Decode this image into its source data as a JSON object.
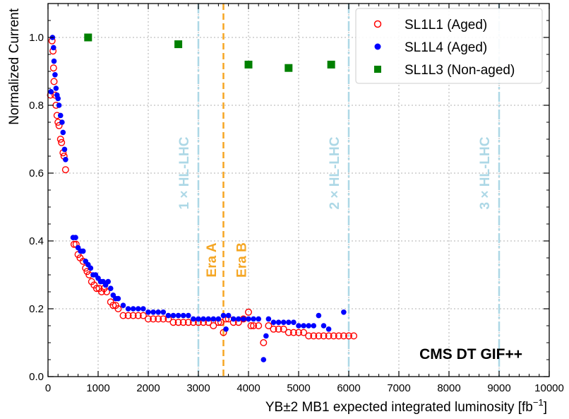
{
  "chart_data": {
    "type": "scatter",
    "xlabel": "YB±2 MB1 expected integrated luminosity [fb",
    "xlabel_unit_exp": "−1",
    "xlabel_close": "]",
    "ylabel": "Normalized Current",
    "xlim": [
      0,
      10000
    ],
    "ylim": [
      0,
      1.1
    ],
    "grid": true,
    "legend_position": "top-right",
    "x_ticks": [
      0,
      1000,
      2000,
      3000,
      4000,
      5000,
      6000,
      7000,
      8000,
      9000,
      10000
    ],
    "x_tick_labels": [
      "0",
      "1000",
      "2000",
      "3000",
      "4000",
      "5000",
      "6000",
      "7000",
      "8000",
      "9000",
      "10000"
    ],
    "y_ticks": [
      0,
      0.2,
      0.4,
      0.6,
      0.8,
      1.0
    ],
    "y_tick_labels": [
      "0.0",
      "0.2",
      "0.4",
      "0.6",
      "0.8",
      "1.0"
    ],
    "annotation": "CMS DT GIF++",
    "vertical_lines": [
      {
        "x": 3000,
        "label": "1 × HL-LHC",
        "color": "#add8e6",
        "style": "dashdot"
      },
      {
        "x": 6000,
        "label": "2 × HL-LHC",
        "color": "#add8e6",
        "style": "dashdot"
      },
      {
        "x": 9000,
        "label": "3 × HL-LHC",
        "color": "#add8e6",
        "style": "dashdot"
      },
      {
        "x": 3500,
        "label": "",
        "color": "#f5a623",
        "style": "dashed"
      }
    ],
    "era_labels": [
      {
        "x": 3250,
        "text": "Era A",
        "color": "#f5a623"
      },
      {
        "x": 3850,
        "text": "Era B",
        "color": "#f5a623"
      }
    ],
    "series": [
      {
        "name": "SL1L1 (Aged)",
        "marker": "open-circle",
        "color": "#ff0000",
        "x": [
          50,
          80,
          100,
          110,
          120,
          140,
          160,
          180,
          200,
          220,
          250,
          270,
          300,
          320,
          350,
          520,
          560,
          600,
          640,
          700,
          750,
          780,
          820,
          870,
          920,
          970,
          1020,
          1070,
          1120,
          1170,
          1250,
          1300,
          1350,
          1400,
          1500,
          1600,
          1700,
          1800,
          1900,
          2000,
          2100,
          2200,
          2300,
          2400,
          2500,
          2600,
          2700,
          2800,
          2900,
          3000,
          3100,
          3200,
          3300,
          3400,
          3450,
          3500,
          3550,
          3600,
          3700,
          3800,
          3900,
          4000,
          4050,
          4100,
          4200,
          4300,
          4400,
          4500,
          4600,
          4700,
          4800,
          4900,
          5000,
          5100,
          5200,
          5300,
          5400,
          5500,
          5600,
          5700,
          5800,
          5900,
          6000,
          6100
        ],
        "y": [
          0.83,
          0.99,
          0.96,
          0.91,
          0.87,
          0.83,
          0.8,
          0.77,
          0.75,
          0.74,
          0.7,
          0.69,
          0.66,
          0.65,
          0.61,
          0.39,
          0.39,
          0.36,
          0.35,
          0.34,
          0.32,
          0.31,
          0.3,
          0.28,
          0.27,
          0.26,
          0.26,
          0.25,
          0.26,
          0.25,
          0.22,
          0.21,
          0.21,
          0.2,
          0.18,
          0.18,
          0.18,
          0.18,
          0.18,
          0.17,
          0.17,
          0.17,
          0.17,
          0.17,
          0.16,
          0.16,
          0.16,
          0.16,
          0.16,
          0.16,
          0.16,
          0.16,
          0.15,
          0.16,
          0.16,
          0.13,
          0.17,
          0.17,
          0.16,
          0.16,
          0.17,
          0.19,
          0.15,
          0.15,
          0.15,
          0.1,
          0.15,
          0.14,
          0.14,
          0.14,
          0.13,
          0.13,
          0.13,
          0.13,
          0.12,
          0.12,
          0.12,
          0.12,
          0.12,
          0.12,
          0.12,
          0.12,
          0.12,
          0.12
        ]
      },
      {
        "name": "SL1L4 (Aged)",
        "marker": "filled-circle",
        "color": "#0000ff",
        "x": [
          60,
          90,
          110,
          120,
          140,
          160,
          180,
          200,
          220,
          250,
          280,
          300,
          330,
          350,
          500,
          550,
          600,
          650,
          700,
          750,
          800,
          850,
          900,
          950,
          1000,
          1050,
          1100,
          1150,
          1200,
          1250,
          1300,
          1350,
          1400,
          1500,
          1600,
          1700,
          1800,
          1900,
          2000,
          2100,
          2200,
          2300,
          2400,
          2500,
          2600,
          2700,
          2800,
          2900,
          3000,
          3100,
          3200,
          3300,
          3400,
          3500,
          3550,
          3600,
          3700,
          3800,
          3900,
          4000,
          4100,
          4200,
          4300,
          4350,
          4400,
          4500,
          4600,
          4700,
          4800,
          4900,
          5000,
          5100,
          5200,
          5300,
          5400,
          5500,
          5600,
          5900
        ],
        "y": [
          0.84,
          1.0,
          0.97,
          0.93,
          0.89,
          0.85,
          0.83,
          0.82,
          0.8,
          0.77,
          0.75,
          0.72,
          0.67,
          0.64,
          0.41,
          0.41,
          0.38,
          0.37,
          0.37,
          0.34,
          0.33,
          0.32,
          0.3,
          0.3,
          0.29,
          0.28,
          0.28,
          0.27,
          0.28,
          0.26,
          0.24,
          0.23,
          0.23,
          0.21,
          0.2,
          0.2,
          0.2,
          0.2,
          0.19,
          0.19,
          0.19,
          0.19,
          0.18,
          0.18,
          0.18,
          0.18,
          0.18,
          0.17,
          0.17,
          0.17,
          0.17,
          0.17,
          0.17,
          0.18,
          0.14,
          0.18,
          0.17,
          0.17,
          0.17,
          0.17,
          0.17,
          0.17,
          0.05,
          0.12,
          0.17,
          0.16,
          0.16,
          0.16,
          0.16,
          0.16,
          0.15,
          0.15,
          0.15,
          0.15,
          0.18,
          0.15,
          0.14,
          0.19
        ]
      },
      {
        "name": "SL1L3 (Non-aged)",
        "marker": "filled-square",
        "color": "#008000",
        "x": [
          800,
          2600,
          4000,
          4800,
          5650
        ],
        "y": [
          1.0,
          0.98,
          0.92,
          0.91,
          0.92
        ]
      }
    ]
  }
}
